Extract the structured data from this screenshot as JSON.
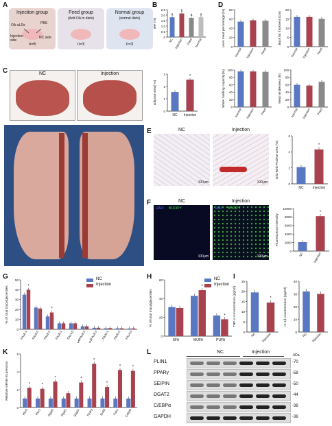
{
  "panels": {
    "A": {
      "label": "A",
      "groups": [
        {
          "title": "Injection group",
          "sub": "",
          "n": "n=6",
          "bg": "#e9d3cf"
        },
        {
          "title": "Feed group",
          "sub": "(Add OA to diets)",
          "n": "n=3",
          "bg": "#e7e1ea"
        },
        {
          "title": "Normal group",
          "sub": "(normal diets)",
          "n": "n=3",
          "bg": "#dfe5f0"
        }
      ],
      "syringe_labels": [
        "OA-aLDs",
        "PBS"
      ],
      "side_labels": [
        "Injection side",
        "NC side"
      ]
    },
    "B": {
      "label": "B"
    },
    "C": {
      "label": "C",
      "tabs": [
        "NC",
        "Injection"
      ]
    },
    "D": {
      "label": "D"
    },
    "E": {
      "label": "E",
      "titles": [
        "NC",
        "Injection"
      ],
      "scale": [
        "100μm",
        "100μm"
      ]
    },
    "F": {
      "label": "F",
      "titles": [
        "NC",
        "Injection"
      ],
      "stain": [
        "DAPI",
        "BODIPY"
      ],
      "scale": [
        "100μm",
        "100μm"
      ]
    },
    "G": {
      "label": "G"
    },
    "H": {
      "label": "H"
    },
    "I": {
      "label": "I"
    },
    "K": {
      "label": "K"
    },
    "L": {
      "label": "L",
      "group_labels": [
        "NC",
        "Injection"
      ],
      "kda": "-kDa",
      "proteins": [
        {
          "name": "PLIN1",
          "kd": "-70"
        },
        {
          "name": "PPARγ",
          "kd": "-58"
        },
        {
          "name": "SEIPIN",
          "kd": "-50"
        },
        {
          "name": "DGAT2",
          "kd": "-44"
        },
        {
          "name": "C/EBPα",
          "kd": "-38"
        },
        {
          "name": "GAPDH",
          "kd": "-36"
        }
      ]
    }
  },
  "colors": {
    "nc": "#5a78c2",
    "injection": "#a8424f",
    "feed": "#8a8a8a",
    "normal": "#bdbdbd"
  },
  "chart_data": [
    {
      "id": "B1",
      "type": "bar",
      "ylabel": "IMF (%)",
      "ylim": [
        0,
        2.5
      ],
      "yticks": [
        "0",
        "0.5",
        "1.0",
        "1.5",
        "2.0",
        "2.5"
      ],
      "categories": [
        "NC",
        "Injection",
        "Feed",
        "Normal"
      ],
      "values": [
        1.8,
        2.15,
        1.75,
        1.8
      ],
      "letters": [
        "a",
        "b",
        "a",
        "a"
      ]
    },
    {
      "id": "B2",
      "type": "bar",
      "ylabel": "adipose area( %)",
      "ylim": [
        0,
        3
      ],
      "yticks": [
        "0",
        "1",
        "2",
        "3"
      ],
      "categories": [
        "NC",
        "Injection"
      ],
      "values": [
        1.55,
        2.55
      ],
      "sig": [
        "",
        "*"
      ]
    },
    {
      "id": "D1",
      "type": "bar",
      "ylabel": "Lean meat percentage (%)",
      "ylim": [
        0,
        80
      ],
      "yticks": [
        "0",
        "20",
        "40",
        "60",
        "80"
      ],
      "categories": [
        "Normal",
        "Injection",
        "Feed"
      ],
      "values": [
        54,
        57,
        56
      ]
    },
    {
      "id": "D2",
      "type": "bar",
      "ylabel": "Back fat thickness (cm)",
      "ylim": [
        0,
        20
      ],
      "yticks": [
        "0",
        "5",
        "10",
        "15",
        "20"
      ],
      "categories": [
        "Normal",
        "Injection",
        "Feed"
      ],
      "values": [
        16,
        16,
        15
      ]
    },
    {
      "id": "D3",
      "type": "bar",
      "ylabel": "Water holding capacity(%)",
      "ylim": [
        0,
        100
      ],
      "yticks": [
        "0",
        "20",
        "40",
        "60",
        "80",
        "100"
      ],
      "categories": [
        "Normal",
        "Injection",
        "Feed"
      ],
      "values": [
        96,
        96,
        95
      ]
    },
    {
      "id": "D4",
      "type": "bar",
      "ylabel": "Meat tenderness (N)",
      "ylim": [
        0,
        100
      ],
      "yticks": [
        "0",
        "20",
        "40",
        "60",
        "80",
        "100"
      ],
      "categories": [
        "Normal",
        "Injection",
        "Feed"
      ],
      "values": [
        60,
        58,
        68
      ]
    },
    {
      "id": "E",
      "type": "bar",
      "ylabel": "Oila Red Positive area (%)",
      "ylim": [
        0,
        6
      ],
      "yticks": [
        "0",
        "2",
        "4",
        "6"
      ],
      "categories": [
        "NC",
        "Injection"
      ],
      "values": [
        2.1,
        4.3
      ],
      "sig": [
        "",
        "*"
      ]
    },
    {
      "id": "F",
      "type": "bar",
      "ylabel": "Fluorescence intensity",
      "ylim": [
        0,
        10000
      ],
      "yticks": [
        "0",
        "2000",
        "4000",
        "6000",
        "8000",
        "10000"
      ],
      "categories": [
        "NC",
        "Injection"
      ],
      "values": [
        2100,
        8200
      ],
      "sig": [
        "",
        "*"
      ]
    },
    {
      "id": "G",
      "type": "bar",
      "ylabel": "% of total triacylglycerides",
      "ylim": [
        0,
        50
      ],
      "yticks": [
        "0",
        "10",
        "20",
        "30",
        "40",
        "50"
      ],
      "categories": [
        "FA16:1",
        "FA16:0",
        "FA18:2",
        "FA16:1",
        "FA14:0",
        "w6FA18:3",
        "w3FA18:3",
        "FA20:1",
        "FA20:2",
        "FA14:0"
      ],
      "series": [
        {
          "name": "NC",
          "values": [
            35,
            22,
            13,
            6,
            6,
            3,
            1.5,
            1,
            1,
            0.8
          ]
        },
        {
          "name": "Injection",
          "values": [
            40,
            21,
            17,
            6,
            6,
            3,
            1.5,
            1.2,
            1,
            0.9
          ]
        }
      ],
      "sig": [
        "*",
        "",
        "*",
        "",
        "",
        "",
        "",
        "",
        "",
        ""
      ]
    },
    {
      "id": "H",
      "type": "bar",
      "ylabel": "% of total triacylglycerides",
      "ylim": [
        0,
        60
      ],
      "yticks": [
        "0",
        "20",
        "40",
        "60"
      ],
      "categories": [
        "SFA",
        "MUFA",
        "PUFA"
      ],
      "series": [
        {
          "name": "NC",
          "values": [
            31,
            43,
            22
          ]
        },
        {
          "name": "Injection",
          "values": [
            30,
            49,
            18
          ]
        }
      ],
      "sig": [
        "",
        "*",
        "*"
      ]
    },
    {
      "id": "I1",
      "type": "bar",
      "ylabel": "TNF-α concentration (pg/ml)",
      "ylim": [
        0,
        25
      ],
      "yticks": [
        "0",
        "5",
        "10",
        "15",
        "20",
        "25"
      ],
      "categories": [
        "NC",
        "Injection"
      ],
      "values": [
        19.5,
        14.5
      ],
      "sig": [
        "",
        "*"
      ]
    },
    {
      "id": "I2",
      "type": "bar",
      "ylabel": "IL-1β concentration (pg/ml)",
      "ylim": [
        0,
        40
      ],
      "yticks": [
        "0",
        "10",
        "20",
        "30",
        "40"
      ],
      "categories": [
        "NC",
        "Injection"
      ],
      "values": [
        32,
        30
      ]
    },
    {
      "id": "K",
      "type": "bar",
      "ylabel": "Relative mRNA Expression",
      "ylim": [
        0,
        6
      ],
      "yticks": [
        "0",
        "2",
        "4",
        "6"
      ],
      "categories": [
        "Plin5",
        "Plin1",
        "Dgat2",
        "Dgat1",
        "Seipin",
        "Pparγ",
        "Srebf",
        "Fasn",
        "Cebpα"
      ],
      "series": [
        {
          "name": "NC",
          "values": [
            1,
            1,
            1,
            1,
            1,
            1,
            1,
            1,
            1
          ]
        },
        {
          "name": "Injection",
          "values": [
            2.2,
            2.1,
            2.9,
            1.6,
            2.8,
            4.9,
            2.3,
            4.2,
            4.1
          ]
        }
      ],
      "sig": [
        "*",
        "*",
        "*",
        "",
        "*",
        "*",
        "*",
        "*",
        "*"
      ]
    }
  ],
  "legend": {
    "nc": "NC",
    "injection": "Injection"
  }
}
